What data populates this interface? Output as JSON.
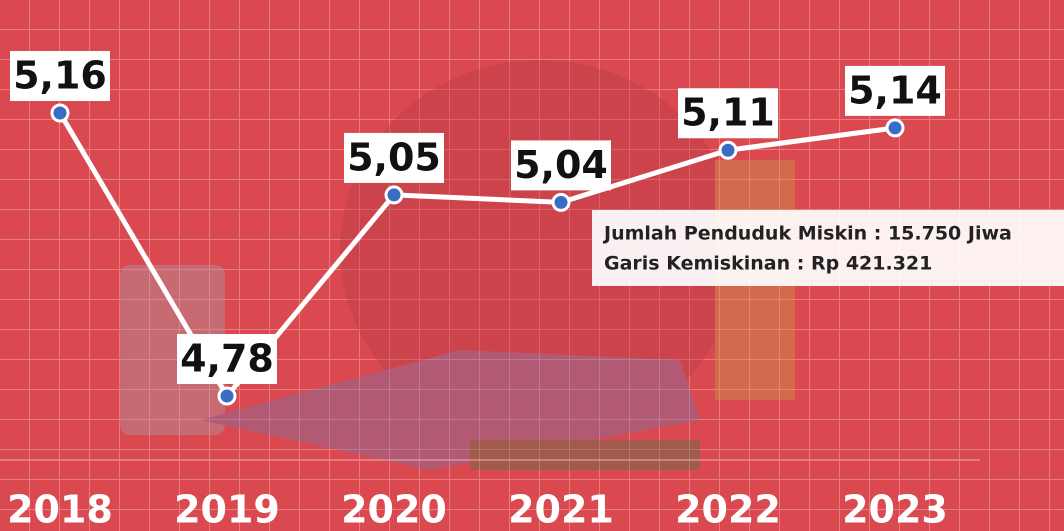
{
  "chart_data": {
    "type": "line",
    "categories": [
      "2018",
      "2019",
      "2020",
      "2021",
      "2022",
      "2023"
    ],
    "values": [
      5.16,
      4.78,
      5.05,
      5.04,
      5.11,
      5.14
    ],
    "value_labels": [
      "5,16",
      "4,78",
      "5,05",
      "5,04",
      "5,11",
      "5,14"
    ],
    "color": "#ffffff",
    "point_color": "#3b6cc4",
    "tooltip": {
      "lines": [
        "Jumlah Penduduk Miskin : 15.750 Jiwa",
        "Garis Kemiskinan : Rp 421.321"
      ]
    }
  }
}
